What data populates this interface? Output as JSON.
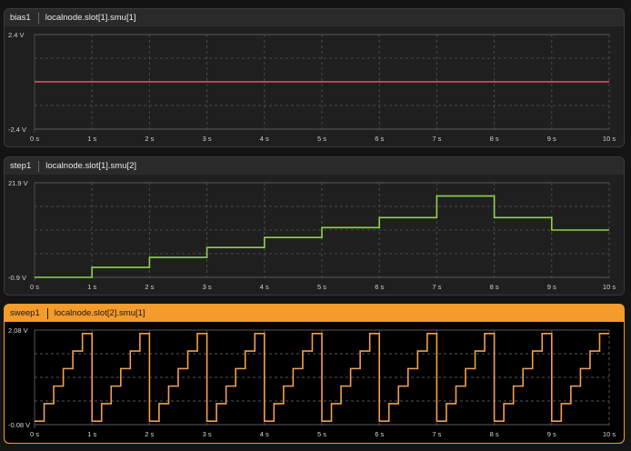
{
  "panels": [
    {
      "name": "bias1",
      "channel": "localnode.slot[1].smu[1]",
      "y_top_label": "2.4 V",
      "y_bottom_label": "-2.4 V",
      "line_color": "#e0566e",
      "selected": false
    },
    {
      "name": "step1",
      "channel": "localnode.slot[1].smu[2]",
      "y_top_label": "21.9 V",
      "y_bottom_label": "-0.9 V",
      "line_color": "#8fd14f",
      "selected": false
    },
    {
      "name": "sweep1",
      "channel": "localnode.slot[2].smu[1]",
      "y_top_label": "2.08 V",
      "y_bottom_label": "-0.08 V",
      "line_color": "#f0a050",
      "selected": true
    }
  ],
  "x_ticks": [
    "0 s",
    "1 s",
    "2 s",
    "3 s",
    "4 s",
    "5 s",
    "6 s",
    "7 s",
    "8 s",
    "9 s",
    "10 s"
  ],
  "chart_data": [
    {
      "type": "line",
      "x": [
        0,
        10
      ],
      "values": [
        0,
        0
      ],
      "xlim": [
        0,
        10
      ],
      "ylim": [
        -2.4,
        2.4
      ],
      "xlabel": "",
      "ylabel": ""
    },
    {
      "type": "line",
      "step": true,
      "x": [
        0,
        1,
        2,
        3,
        4,
        5,
        6,
        7,
        8,
        9,
        10
      ],
      "values": [
        -0.9,
        1.5,
        3.9,
        6.3,
        8.7,
        11.1,
        13.5,
        18.7,
        13.5,
        10.5,
        10.5
      ],
      "xlim": [
        0,
        10
      ],
      "ylim": [
        -0.9,
        21.9
      ],
      "xlabel": "",
      "ylabel": ""
    },
    {
      "type": "line",
      "step": true,
      "period_s": 1,
      "levels_per_period": [
        0.0,
        0.4,
        0.8,
        1.2,
        1.6,
        2.0
      ],
      "xlim": [
        0,
        10
      ],
      "ylim": [
        -0.08,
        2.08
      ],
      "xlabel": "",
      "ylabel": ""
    }
  ]
}
